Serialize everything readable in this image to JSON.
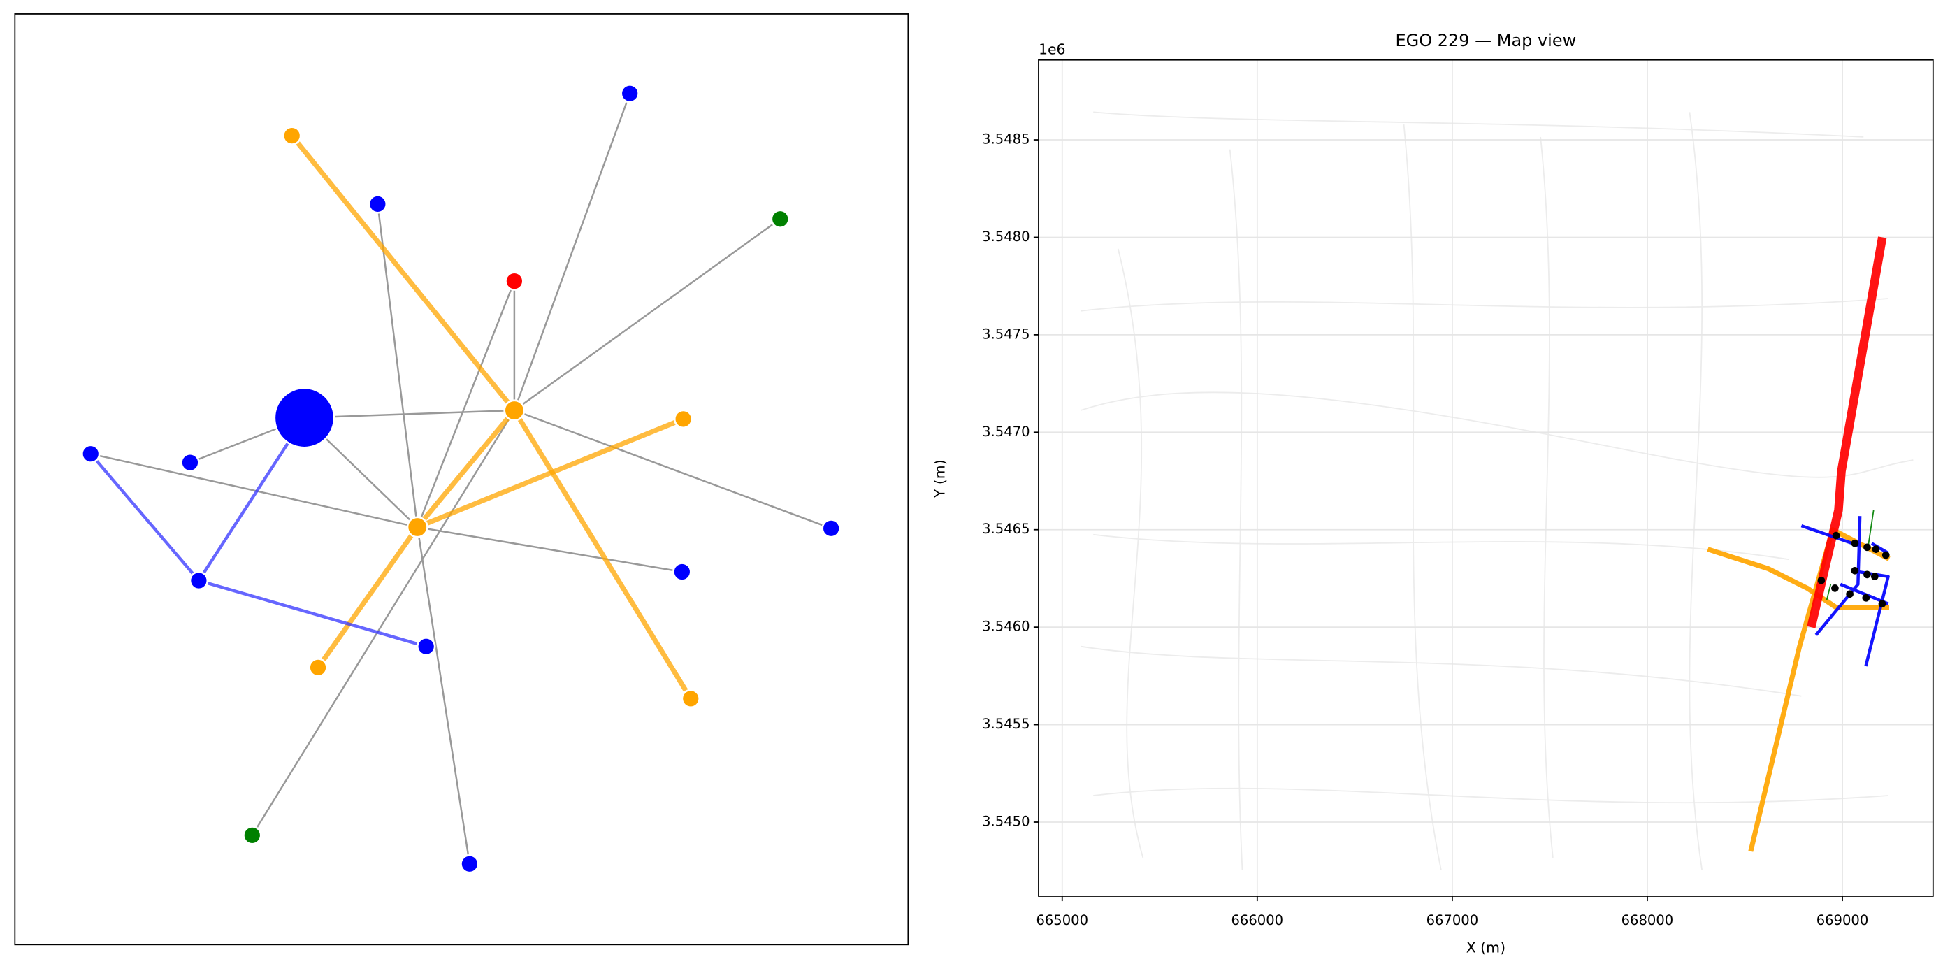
{
  "chart_data": [
    {
      "type": "network",
      "nodes": [
        {
          "color": "#0000ff",
          "size": 24
        },
        {
          "color": "#ffa500",
          "size": 8
        },
        {
          "color": "#ffa500",
          "size": 8
        },
        {
          "color": "#ffa500",
          "size": 7
        },
        {
          "color": "#0000ff",
          "size": 7
        },
        {
          "color": "#0000ff",
          "size": 7
        },
        {
          "color": "#008000",
          "size": 7
        },
        {
          "color": "#ff0000",
          "size": 7
        },
        {
          "color": "#ffa500",
          "size": 7
        },
        {
          "color": "#0000ff",
          "size": 7
        },
        {
          "color": "#0000ff",
          "size": 7
        },
        {
          "color": "#0000ff",
          "size": 7
        },
        {
          "color": "#0000ff",
          "size": 7
        },
        {
          "color": "#0000ff",
          "size": 7
        },
        {
          "color": "#0000ff",
          "size": 7
        },
        {
          "color": "#ffa500",
          "size": 7
        },
        {
          "color": "#ffa500",
          "size": 7
        },
        {
          "color": "#008000",
          "size": 7
        },
        {
          "color": "#0000ff",
          "size": 7
        }
      ],
      "edges": [
        {
          "source": 0,
          "target": 1,
          "color": "#999999",
          "width": 1.4
        },
        {
          "source": 0,
          "target": 2,
          "color": "#999999",
          "width": 1.4
        },
        {
          "source": 10,
          "target": 0,
          "color": "#999999",
          "width": 1.4
        },
        {
          "source": 9,
          "target": 2,
          "color": "#999999",
          "width": 1.4
        },
        {
          "source": 4,
          "target": 2,
          "color": "#999999",
          "width": 1.4
        },
        {
          "source": 7,
          "target": 1,
          "color": "#999999",
          "width": 1.4
        },
        {
          "source": 7,
          "target": 2,
          "color": "#999999",
          "width": 1.4
        },
        {
          "source": 5,
          "target": 1,
          "color": "#999999",
          "width": 1.4
        },
        {
          "source": 6,
          "target": 1,
          "color": "#999999",
          "width": 1.4
        },
        {
          "source": 1,
          "target": 12,
          "color": "#999999",
          "width": 1.4
        },
        {
          "source": 2,
          "target": 13,
          "color": "#999999",
          "width": 1.4
        },
        {
          "source": 2,
          "target": 18,
          "color": "#999999",
          "width": 1.4
        },
        {
          "source": 1,
          "target": 17,
          "color": "#999999",
          "width": 1.4
        },
        {
          "source": 3,
          "target": 1,
          "color": "#ffa500",
          "width": 4
        },
        {
          "source": 1,
          "target": 16,
          "color": "#ffa500",
          "width": 4
        },
        {
          "source": 2,
          "target": 8,
          "color": "#ffa500",
          "width": 4
        },
        {
          "source": 2,
          "target": 15,
          "color": "#ffa500",
          "width": 4
        },
        {
          "source": 1,
          "target": 2,
          "color": "#ffa500",
          "width": 4
        },
        {
          "source": 9,
          "target": 11,
          "color": "#3333ff",
          "width": 2.5
        },
        {
          "source": 11,
          "target": 0,
          "color": "#3333ff",
          "width": 2.5
        },
        {
          "source": 11,
          "target": 14,
          "color": "#3333ff",
          "width": 2.5
        }
      ]
    },
    {
      "type": "line",
      "title": "EGO 229 — Map view",
      "x_label": "X (m)",
      "y_label": "Y (m)",
      "y_offset_label": "1e6",
      "xlim": [
        664879,
        669465
      ],
      "ylim": [
        3.54462,
        3.54891
      ],
      "xticks": [
        665000,
        666000,
        667000,
        668000,
        669000
      ],
      "yticks": [
        {
          "value": 3.545,
          "label": "3.5450"
        },
        3.5455,
        {
          "value": 3.546,
          "label": "3.5460"
        },
        3.5465,
        {
          "value": 3.547,
          "label": "3.5470"
        },
        3.5475,
        {
          "value": 3.548,
          "label": "3.5480"
        },
        3.5485
      ],
      "grid": true,
      "series": [
        {
          "kind": "line",
          "color": "#ffa500",
          "linewidth": 4,
          "x": [
            668310,
            668620,
            668820,
            668970,
            669240
          ],
          "values": [
            3.5464,
            3.5463,
            3.5462,
            3.5461,
            3.5461
          ]
        },
        {
          "kind": "line",
          "color": "#ffa500",
          "linewidth": 4,
          "x": [
            668530,
            668780,
            668950,
            669240
          ],
          "values": [
            3.54485,
            3.5459,
            3.5465,
            3.54635
          ]
        },
        {
          "kind": "line",
          "color": "#ff0000",
          "linewidth": 7,
          "x": [
            668840,
            668980,
            668995,
            669205
          ],
          "values": [
            3.546,
            3.5466,
            3.5468,
            3.548
          ]
        },
        {
          "kind": "line",
          "color": "#0000ff",
          "linewidth": 2.5,
          "x": [
            668790,
            669080,
            null,
            669090,
            669080,
            668865,
            null,
            669045,
            669235,
            669120,
            null,
            668990,
            669235,
            null,
            669150,
            669235
          ],
          "values": [
            3.54652,
            3.54642,
            null,
            3.54657,
            3.54622,
            3.54596,
            null,
            3.54629,
            3.54626,
            3.5458,
            null,
            3.54622,
            3.54612,
            null,
            3.54643,
            3.54638
          ]
        },
        {
          "kind": "line",
          "color": "#008000",
          "linewidth": 1,
          "x": [
            669130,
            669160,
            null,
            668920,
            668940
          ],
          "values": [
            3.5464,
            3.5466,
            null,
            3.54614,
            3.54622
          ]
        },
        {
          "kind": "scatter",
          "color": "#000000",
          "x": [
            668968,
            669064,
            669127,
            669172,
            669223,
            668892,
            668962,
            669038,
            669121,
            669204,
            669064,
            669127,
            669166
          ],
          "values": [
            3.54647,
            3.54643,
            3.54641,
            3.5464,
            3.54637,
            3.54624,
            3.5462,
            3.54617,
            3.54615,
            3.54612,
            3.54629,
            3.54627,
            3.54626
          ]
        }
      ]
    }
  ]
}
